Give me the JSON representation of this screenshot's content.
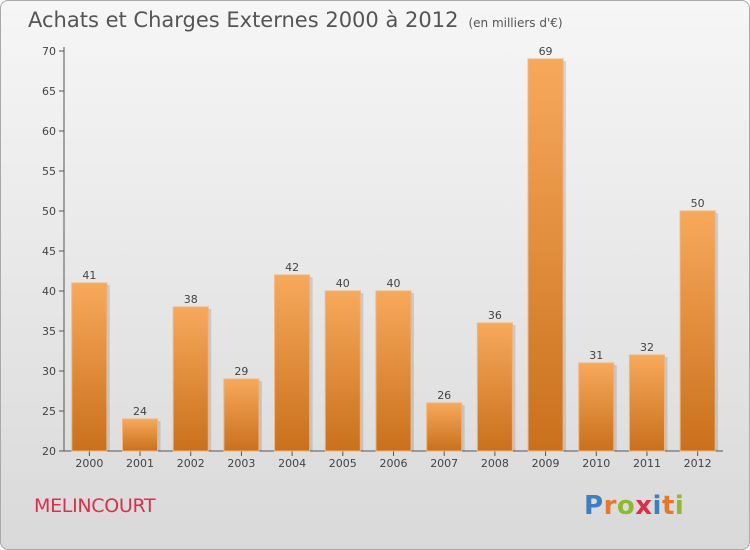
{
  "title": "Achats et Charges Externes 2000 à 2012",
  "unit": "(en milliers d'€)",
  "town": "MELINCOURT",
  "logo": {
    "text": "Proxiti",
    "letter_colors": [
      "#3b7fc4",
      "#e8762b",
      "#8dbb2b",
      "#dd2e4a",
      "#3b7fc4",
      "#e8762b",
      "#8dbb2b"
    ]
  },
  "colors": {
    "bar_light": "#f7a95b",
    "bar_dark": "#c9701c",
    "title": "#555555",
    "town": "#dd2e4a"
  },
  "chart_data": {
    "type": "bar",
    "categories": [
      "2000",
      "2001",
      "2002",
      "2003",
      "2004",
      "2005",
      "2006",
      "2007",
      "2008",
      "2009",
      "2010",
      "2011",
      "2012"
    ],
    "values": [
      41,
      24,
      38,
      29,
      42,
      40,
      40,
      26,
      36,
      69,
      31,
      32,
      50
    ],
    "title": "Achats et Charges Externes 2000 à 2012",
    "ylim": [
      20,
      70
    ],
    "yticks": [
      20,
      25,
      30,
      35,
      40,
      45,
      50,
      55,
      60,
      65,
      70
    ],
    "grid": false,
    "data_labels": true
  }
}
